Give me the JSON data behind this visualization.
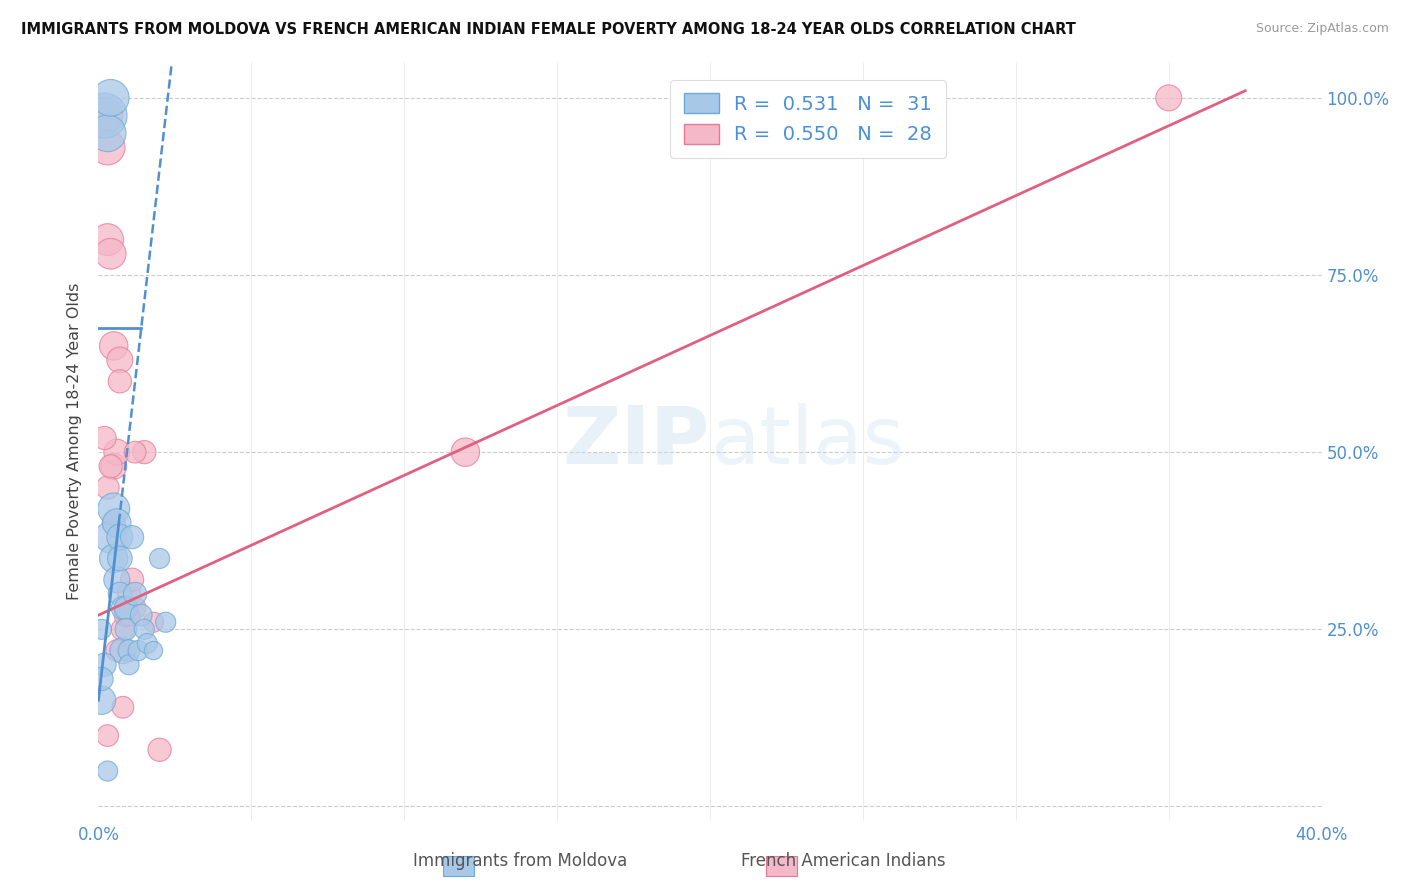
{
  "title": "IMMIGRANTS FROM MOLDOVA VS FRENCH AMERICAN INDIAN FEMALE POVERTY AMONG 18-24 YEAR OLDS CORRELATION CHART",
  "source": "Source: ZipAtlas.com",
  "ylabel": "Female Poverty Among 18-24 Year Olds",
  "xlim": [
    0.0,
    0.4
  ],
  "ylim": [
    -0.02,
    1.05
  ],
  "x_tick_positions": [
    0.0,
    0.05,
    0.1,
    0.15,
    0.2,
    0.25,
    0.3,
    0.35,
    0.4
  ],
  "x_tick_labels": [
    "0.0%",
    "",
    "",
    "",
    "",
    "",
    "",
    "",
    "40.0%"
  ],
  "y_tick_positions": [
    0.0,
    0.25,
    0.5,
    0.75,
    1.0
  ],
  "y_tick_labels_right": [
    "",
    "25.0%",
    "50.0%",
    "75.0%",
    "100.0%"
  ],
  "legend_R_blue": "0.531",
  "legend_N_blue": "31",
  "legend_R_pink": "0.550",
  "legend_N_pink": "28",
  "legend_labels": [
    "Immigrants from Moldova",
    "French American Indians"
  ],
  "blue_fill": "#a8c8e8",
  "blue_edge": "#6aaad4",
  "pink_fill": "#f4b8c8",
  "pink_edge": "#e87898",
  "blue_line_color": "#5090d0",
  "pink_line_color": "#e06080",
  "watermark_color": "#c8dff0",
  "blue_scatter_x": [
    0.002,
    0.003,
    0.004,
    0.004,
    0.005,
    0.005,
    0.006,
    0.006,
    0.007,
    0.007,
    0.007,
    0.008,
    0.008,
    0.009,
    0.009,
    0.01,
    0.01,
    0.011,
    0.012,
    0.013,
    0.014,
    0.015,
    0.016,
    0.018,
    0.02,
    0.022,
    0.002,
    0.003,
    0.001,
    0.001,
    0.001
  ],
  "blue_scatter_y": [
    0.975,
    0.95,
    1.0,
    0.38,
    0.42,
    0.35,
    0.4,
    0.32,
    0.38,
    0.35,
    0.3,
    0.28,
    0.22,
    0.28,
    0.25,
    0.22,
    0.2,
    0.38,
    0.3,
    0.22,
    0.27,
    0.25,
    0.23,
    0.22,
    0.35,
    0.26,
    0.2,
    0.05,
    0.15,
    0.18,
    0.25
  ],
  "blue_scatter_sizes": [
    300,
    200,
    200,
    150,
    150,
    120,
    120,
    100,
    100,
    90,
    80,
    80,
    100,
    80,
    70,
    70,
    60,
    80,
    80,
    60,
    70,
    60,
    60,
    50,
    60,
    60,
    80,
    60,
    120,
    80,
    60
  ],
  "pink_scatter_x": [
    0.002,
    0.003,
    0.003,
    0.004,
    0.005,
    0.005,
    0.006,
    0.007,
    0.008,
    0.009,
    0.01,
    0.011,
    0.012,
    0.015,
    0.018,
    0.002,
    0.003,
    0.004,
    0.006,
    0.007,
    0.01,
    0.012,
    0.02,
    0.005,
    0.008,
    0.12,
    0.003,
    0.35
  ],
  "pink_scatter_y": [
    0.975,
    0.93,
    0.8,
    0.78,
    0.65,
    0.48,
    0.5,
    0.63,
    0.25,
    0.27,
    0.3,
    0.32,
    0.28,
    0.5,
    0.26,
    0.52,
    0.45,
    0.48,
    0.22,
    0.6,
    0.27,
    0.5,
    0.08,
    0.4,
    0.14,
    0.5,
    0.1,
    1.0
  ],
  "pink_scatter_sizes": [
    200,
    180,
    150,
    140,
    120,
    100,
    100,
    100,
    80,
    80,
    80,
    80,
    70,
    80,
    60,
    80,
    80,
    80,
    70,
    80,
    70,
    70,
    80,
    80,
    70,
    120,
    70,
    100
  ],
  "blue_line_x0": 0.0,
  "blue_line_y0": 0.15,
  "blue_line_x1": 0.024,
  "blue_line_y1": 1.05,
  "pink_line_x0": 0.0,
  "pink_line_y0": 0.27,
  "pink_line_x1": 0.375,
  "pink_line_y1": 1.01
}
